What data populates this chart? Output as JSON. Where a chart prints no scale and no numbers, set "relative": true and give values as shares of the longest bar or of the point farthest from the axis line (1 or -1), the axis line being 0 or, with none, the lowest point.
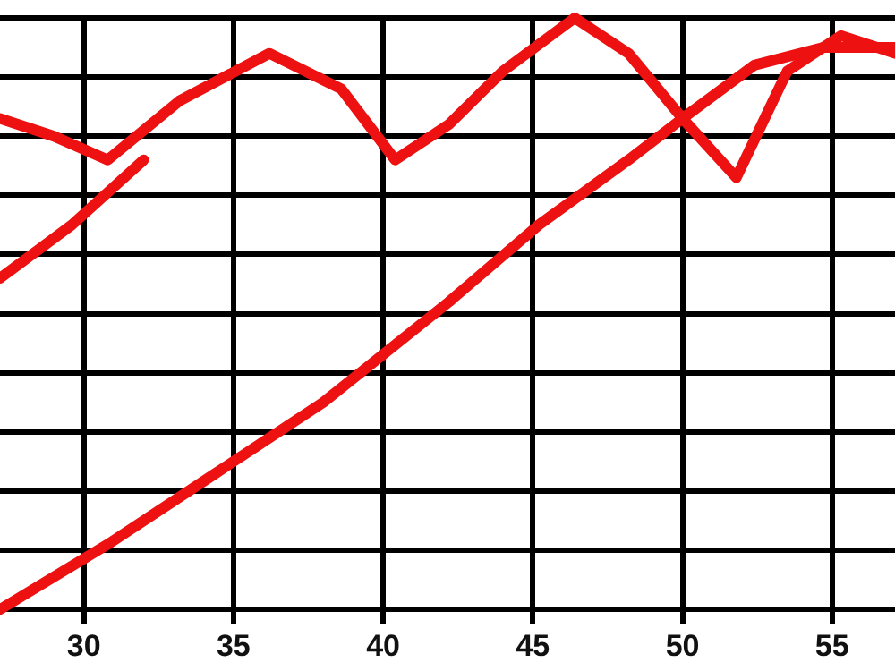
{
  "chart_data": {
    "type": "line",
    "relative": true,
    "xlim": [
      27.2,
      57.1
    ],
    "xticks": [
      30,
      35,
      40,
      45,
      50,
      55
    ],
    "grid": true,
    "legend": false,
    "marker": "none",
    "line_style": "solid",
    "series": [
      {
        "color": "#ee1111",
        "x": [
          27.2,
          29.0,
          30.8,
          33.2,
          36.2,
          38.6,
          40.4,
          42.2,
          44.0,
          46.4,
          48.2,
          50.0,
          51.8,
          53.5,
          55.3,
          57.1
        ],
        "values": [
          0.83,
          0.8,
          0.76,
          0.86,
          0.94,
          0.88,
          0.76,
          0.82,
          0.91,
          1.0,
          0.94,
          0.83,
          0.73,
          0.91,
          0.97,
          0.94
        ]
      },
      {
        "color": "#ee1111",
        "x": [
          27.2,
          29.6,
          32.0
        ],
        "values": [
          0.56,
          0.65,
          0.76
        ]
      },
      {
        "color": "#ee1111",
        "x": [
          27.2,
          30.8,
          34.4,
          38.0,
          42.2,
          45.2,
          48.2,
          50.0,
          52.4,
          54.7,
          57.1
        ],
        "values": [
          0,
          0.11,
          0.23,
          0.35,
          0.52,
          0.65,
          0.76,
          0.83,
          0.92,
          0.95,
          0.95
        ]
      }
    ]
  }
}
